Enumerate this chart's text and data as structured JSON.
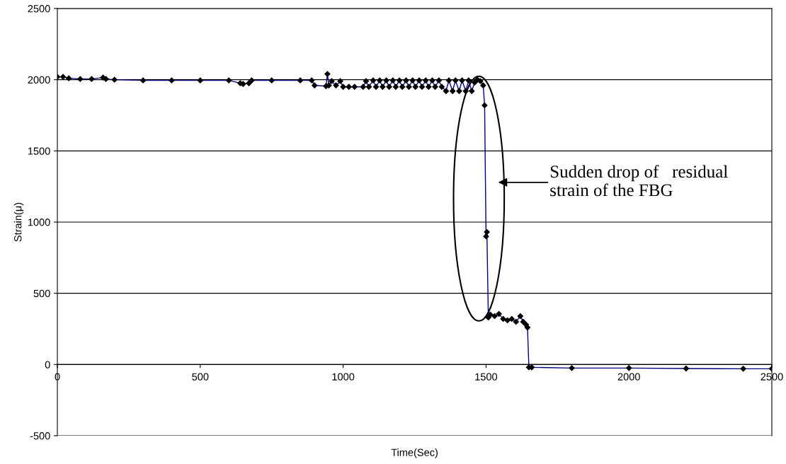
{
  "chart_data": {
    "type": "line",
    "xlabel": "Time(Sec)",
    "ylabel": "Strain(μ)",
    "xlim": [
      0,
      2500
    ],
    "xticks": [
      0,
      500,
      1000,
      1500,
      2000,
      2500
    ],
    "ylim": [
      -500,
      2500
    ],
    "yticks": [
      -500,
      0,
      500,
      1000,
      1500,
      2000,
      2500
    ],
    "grid": "y",
    "legend": false,
    "marker": "diamond",
    "line_style": "solid",
    "series": [
      {
        "color": "#000080",
        "x": [
          0,
          20,
          40,
          80,
          120,
          160,
          170,
          200,
          300,
          400,
          500,
          600,
          640,
          650,
          670,
          680,
          750,
          850,
          890,
          900,
          940,
          945,
          950,
          960,
          975,
          990,
          1000,
          1020,
          1040,
          1070,
          1080,
          1090,
          1105,
          1115,
          1128,
          1138,
          1151,
          1161,
          1174,
          1184,
          1197,
          1207,
          1220,
          1230,
          1243,
          1253,
          1266,
          1276,
          1289,
          1299,
          1312,
          1322,
          1335,
          1345,
          1360,
          1370,
          1383,
          1393,
          1406,
          1416,
          1429,
          1439,
          1450,
          1460,
          1470,
          1480,
          1490,
          1495,
          1500,
          1503,
          1508,
          1515,
          1530,
          1545,
          1560,
          1575,
          1590,
          1605,
          1620,
          1630,
          1640,
          1645,
          1650,
          1660,
          1800,
          2000,
          2200,
          2400,
          2500
        ],
        "values": [
          2020,
          2020,
          2010,
          2005,
          2005,
          2015,
          2005,
          2000,
          1995,
          1995,
          1995,
          1995,
          1975,
          1970,
          1975,
          1995,
          1995,
          1995,
          1995,
          1960,
          1955,
          2040,
          1960,
          1990,
          1960,
          1990,
          1950,
          1950,
          1950,
          1950,
          1990,
          1950,
          1995,
          1950,
          1995,
          1950,
          1995,
          1950,
          1995,
          1950,
          1995,
          1950,
          1995,
          1950,
          1995,
          1950,
          1995,
          1950,
          1995,
          1950,
          1995,
          1950,
          1995,
          1950,
          1920,
          1995,
          1920,
          1995,
          1920,
          1995,
          1920,
          1995,
          1920,
          1980,
          2000,
          1990,
          1960,
          1820,
          900,
          930,
          330,
          350,
          340,
          355,
          320,
          310,
          320,
          300,
          340,
          300,
          280,
          260,
          -20,
          -20,
          -25,
          -25,
          -28,
          -30,
          -30
        ]
      }
    ],
    "annotations": [
      "Sudden drop of   residual\nstrain of the FBG"
    ]
  }
}
